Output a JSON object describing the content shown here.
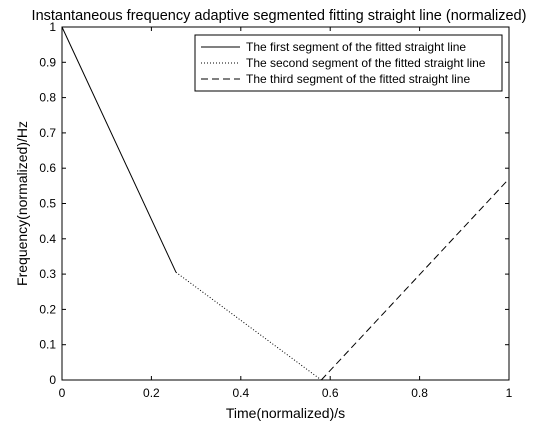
{
  "chart_data": {
    "type": "line",
    "title": "Instantaneous frequency adaptive segmented fitting straight line (normalized)",
    "xlabel": "Time(normalized)/s",
    "ylabel": "Frequency(normalized)/Hz",
    "xlim": [
      0,
      1
    ],
    "ylim": [
      0,
      1
    ],
    "xticks": [
      0,
      0.2,
      0.4,
      0.6,
      0.8,
      1
    ],
    "xtick_labels": [
      "0",
      "0.2",
      "0.4",
      "0.6",
      "0.8",
      "1"
    ],
    "yticks": [
      0,
      0.1,
      0.2,
      0.3,
      0.4,
      0.5,
      0.6,
      0.7,
      0.8,
      0.9,
      1
    ],
    "ytick_labels": [
      "0",
      "0.1",
      "0.2",
      "0.3",
      "0.4",
      "0.5",
      "0.6",
      "0.7",
      "0.8",
      "0.9",
      "1"
    ],
    "grid": false,
    "legend_position": "top-right",
    "series": [
      {
        "name": "The first segment of the fitted straight line",
        "line_style": "solid",
        "color": "#000000",
        "x": [
          0,
          0.255
        ],
        "y": [
          1,
          0.305
        ]
      },
      {
        "name": "The second segment of the fitted straight line",
        "line_style": "dotted",
        "color": "#000000",
        "x": [
          0.255,
          0.58
        ],
        "y": [
          0.305,
          0
        ]
      },
      {
        "name": "The third segment of the fitted straight line",
        "line_style": "dashed",
        "color": "#000000",
        "x": [
          0.58,
          1
        ],
        "y": [
          0,
          0.57
        ]
      }
    ]
  }
}
